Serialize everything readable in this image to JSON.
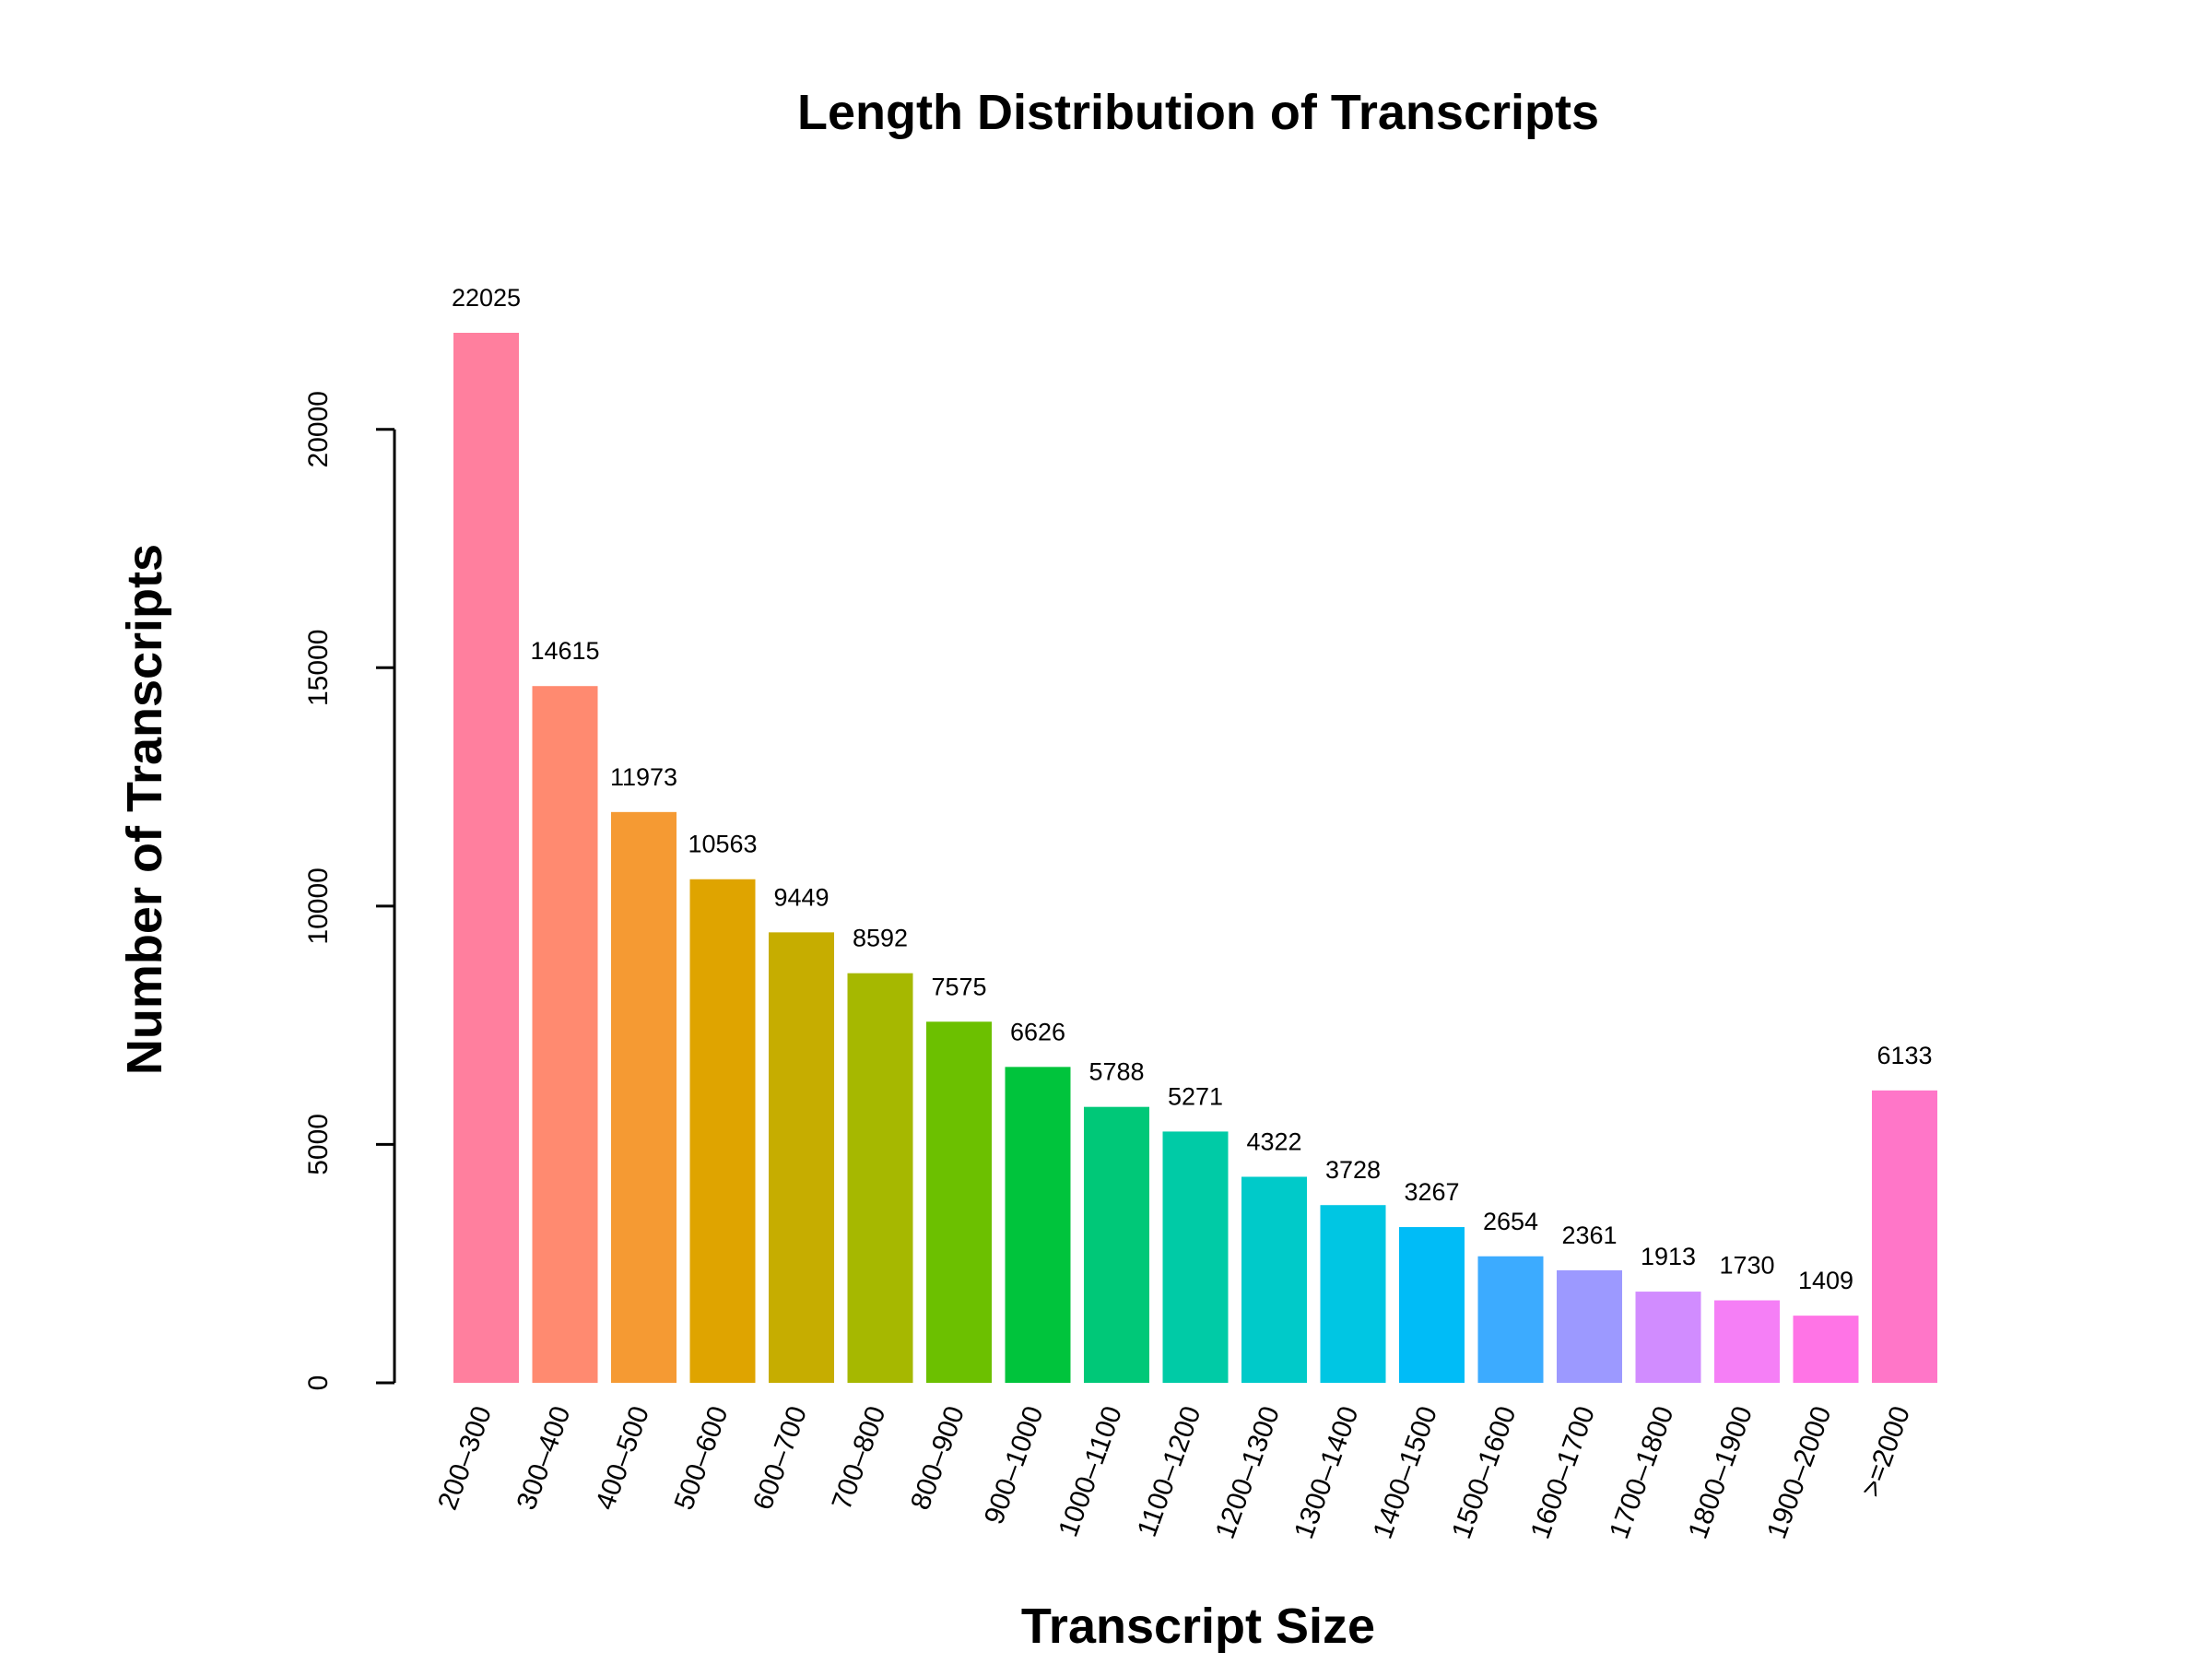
{
  "chart_data": {
    "type": "bar",
    "title": "Length Distribution of Transcripts",
    "xlabel": "Transcript Size",
    "ylabel": "Number of Transcripts",
    "ylim": [
      0,
      22025
    ],
    "yticks": [
      0,
      5000,
      10000,
      15000,
      20000
    ],
    "grid": false,
    "legend": "none",
    "categories": [
      "200–300",
      "300–400",
      "400–500",
      "500–600",
      "600–700",
      "700–800",
      "800–900",
      "900–1000",
      "1000–1100",
      "1100–1200",
      "1200–1300",
      "1300–1400",
      "1400–1500",
      "1500–1600",
      "1600–1700",
      "1700–1800",
      "1800–1900",
      "1900–2000",
      ">=2000"
    ],
    "values": [
      22025,
      14615,
      11973,
      10563,
      9449,
      8592,
      7575,
      6626,
      5788,
      5271,
      4322,
      3728,
      3267,
      2654,
      2361,
      1913,
      1730,
      1409,
      6133
    ],
    "value_labels": [
      "22025",
      "14615",
      "11973",
      "10563",
      "9449",
      "8592",
      "7575",
      "6626",
      "5788",
      "5271",
      "4322",
      "3728",
      "3267",
      "2654",
      "2361",
      "1913",
      "1730",
      "1409",
      "6133"
    ],
    "colors": [
      "#FF7F9E",
      "#FF8A70",
      "#F59A33",
      "#DFA400",
      "#C6AD00",
      "#A6B800",
      "#6CC000",
      "#00C43C",
      "#00C878",
      "#00CBA6",
      "#00CAC9",
      "#00C6E3",
      "#00BCF7",
      "#3CABFF",
      "#9C99FF",
      "#D18CFF",
      "#F57FF6",
      "#FF74E6",
      "#FF76C8"
    ]
  }
}
